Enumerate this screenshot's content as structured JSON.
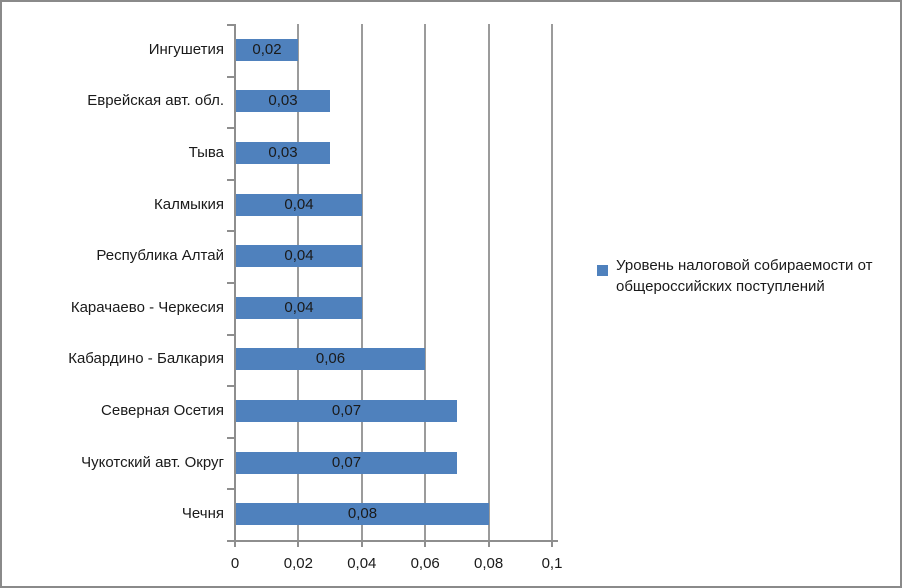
{
  "chart_data": {
    "type": "bar",
    "orientation": "horizontal",
    "title": "",
    "xlabel": "",
    "ylabel": "",
    "categories": [
      "Ингушетия",
      "Еврейская авт. обл.",
      "Тыва",
      "Калмыкия",
      "Республика Алтай",
      "Карачаево - Черкесия",
      "Кабардино - Балкария",
      "Северная Осетия",
      "Чукотский авт. Округ",
      "Чечня"
    ],
    "values": [
      0.02,
      0.03,
      0.03,
      0.04,
      0.04,
      0.04,
      0.06,
      0.07,
      0.07,
      0.08
    ],
    "value_labels": [
      "0,02",
      "0,03",
      "0,03",
      "0,04",
      "0,04",
      "0,04",
      "0,06",
      "0,07",
      "0,07",
      "0,08"
    ],
    "x_ticks": [
      "0",
      "0,02",
      "0,04",
      "0,06",
      "0,08",
      "0,1"
    ],
    "x_tick_values": [
      0,
      0.02,
      0.04,
      0.06,
      0.08,
      0.1
    ],
    "xlim": [
      0,
      0.1
    ],
    "grid": true,
    "legend_position": "right",
    "legend": "Уровень налоговой собираемости от общероссийских поступлений",
    "colors": {
      "bar": "#4F81BD",
      "gridline": "#9B9B9B",
      "axis": "#8E8E8E",
      "border": "#8A8A8A",
      "text": "#1A1A1A",
      "background": "#FFFFFF"
    }
  }
}
